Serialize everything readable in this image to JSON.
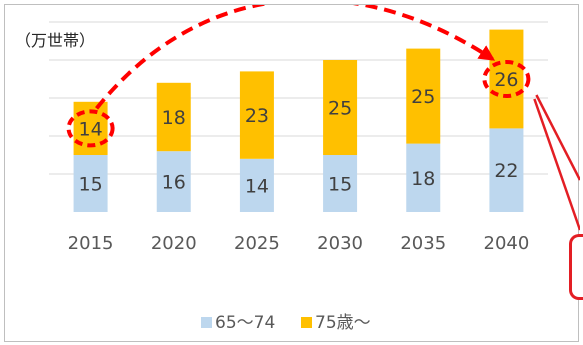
{
  "chart_data": {
    "type": "bar",
    "stacked": true,
    "unit_label": "（万世帯）",
    "categories": [
      "2015",
      "2020",
      "2025",
      "2030",
      "2035",
      "2040"
    ],
    "series": [
      {
        "name": "65～74",
        "color": "#bdd7ee",
        "values": [
          15,
          16,
          14,
          15,
          18,
          22
        ]
      },
      {
        "name": "75歳～",
        "color": "#ffc000",
        "values": [
          14,
          18,
          23,
          25,
          25,
          26
        ]
      }
    ],
    "ylim": [
      0,
      50
    ],
    "grid": true,
    "legend_position": "bottom",
    "annotations": {
      "highlighted_values": [
        {
          "category": "2015",
          "series": "75歳～",
          "value": 14
        },
        {
          "category": "2040",
          "series": "75歳～",
          "value": 26
        }
      ],
      "arrow_color": "#ff0000"
    }
  }
}
